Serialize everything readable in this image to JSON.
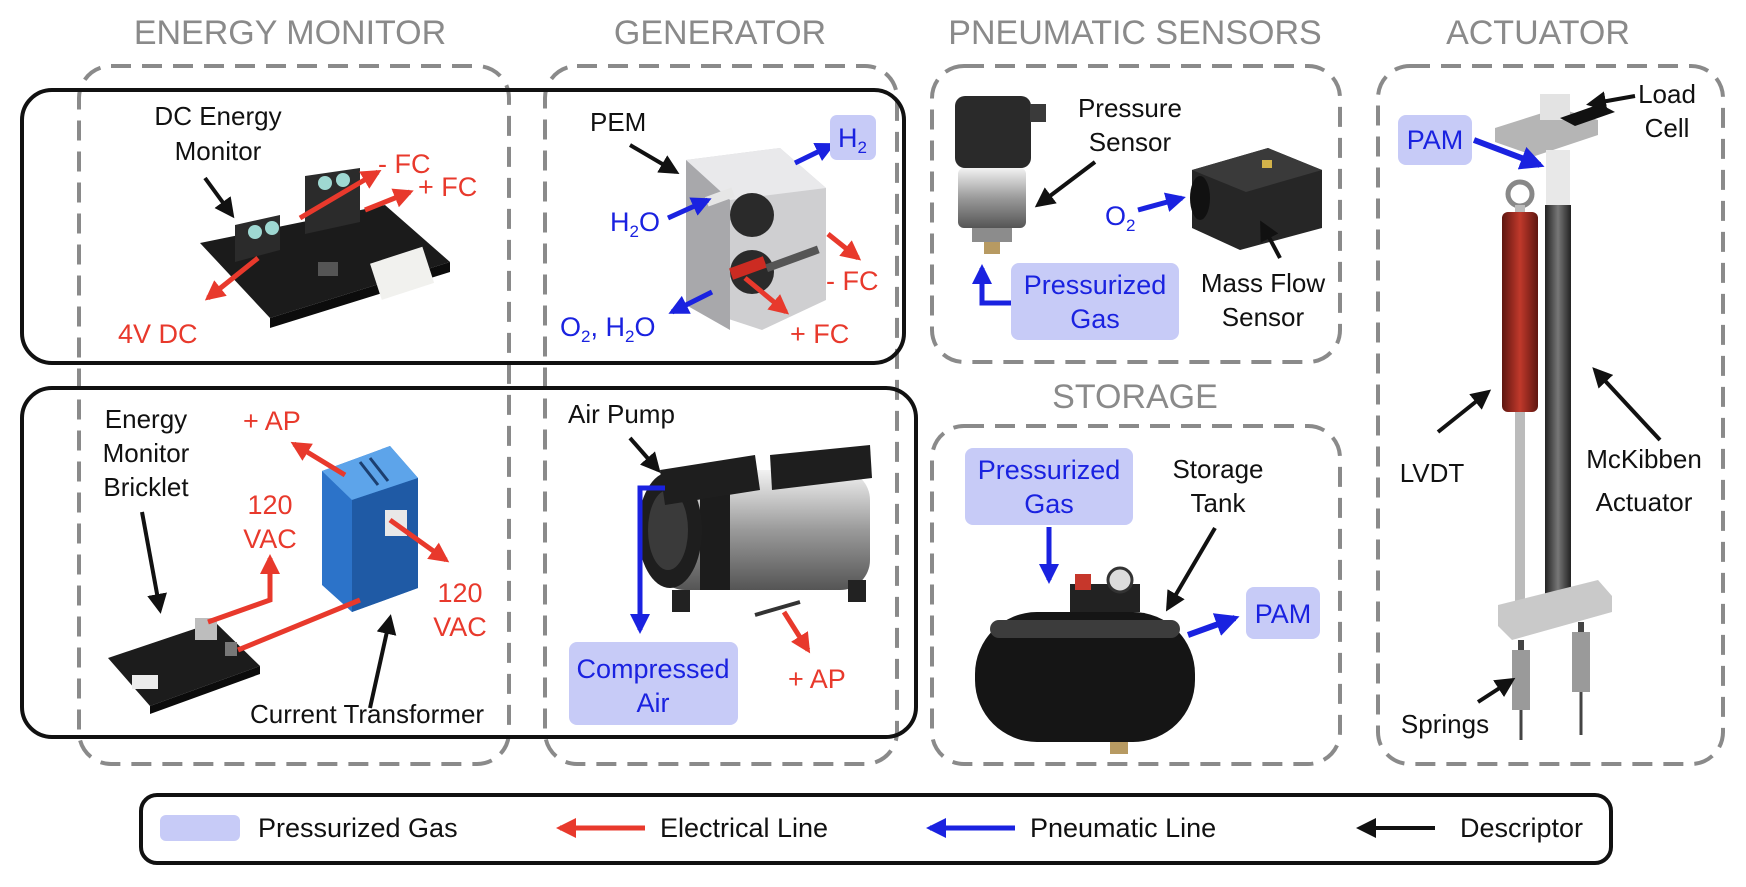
{
  "colors": {
    "electrical": "#e8392c",
    "pneumatic": "#1a22e0",
    "descriptor": "#111111",
    "pressurized_gas_fill": "#c7cbf7",
    "section_title": "#8a8a8a"
  },
  "sections": {
    "energy_monitor": "ENERGY MONITOR",
    "generator": "GENERATOR",
    "pneumatic_sensors": "PNEUMATIC SENSORS",
    "storage": "STORAGE",
    "actuator": "ACTUATOR"
  },
  "energy_monitor": {
    "dc_label_1": "DC Energy",
    "dc_label_2": "Monitor",
    "minus_fc": "- FC",
    "plus_fc": "+ FC",
    "v4dc": "4V DC",
    "bricklet_1": "Energy",
    "bricklet_2": "Monitor",
    "bricklet_3": "Bricklet",
    "plus_ap": "+ AP",
    "vac_a1": "120",
    "vac_a2": "VAC",
    "vac_b1": "120",
    "vac_b2": "VAC",
    "current_transformer": "Current Transformer"
  },
  "generator": {
    "pem": "PEM",
    "h2": "H",
    "h2_sub": "2",
    "h2o_in": "H",
    "h2o_in_sub": "2",
    "h2o_in_tail": "O",
    "o2h2o_1": "O",
    "o2h2o_sub1": "2",
    "o2h2o_2": ", H",
    "o2h2o_sub2": "2",
    "o2h2o_3": "O",
    "minus_fc": "- FC",
    "plus_fc": "+ FC",
    "air_pump": "Air Pump",
    "compressed_1": "Compressed",
    "compressed_2": "Air",
    "plus_ap": "+ AP"
  },
  "pneumatic_sensors": {
    "pressure_1": "Pressure",
    "pressure_2": "Sensor",
    "o2": "O",
    "o2_sub": "2",
    "pgas_1": "Pressurized",
    "pgas_2": "Gas",
    "mass_1": "Mass Flow",
    "mass_2": "Sensor"
  },
  "storage": {
    "pgas_1": "Pressurized",
    "pgas_2": "Gas",
    "tank_1": "Storage",
    "tank_2": "Tank",
    "pam": "PAM"
  },
  "actuator": {
    "load_1": "Load",
    "load_2": "Cell",
    "pam": "PAM",
    "lvdt": "LVDT",
    "mck_1": "McKibben",
    "mck_2": "Actuator",
    "springs": "Springs"
  },
  "legend": {
    "pressurized_gas": "Pressurized Gas",
    "electrical": "Electrical Line",
    "pneumatic": "Pneumatic Line",
    "descriptor": "Descriptor"
  }
}
